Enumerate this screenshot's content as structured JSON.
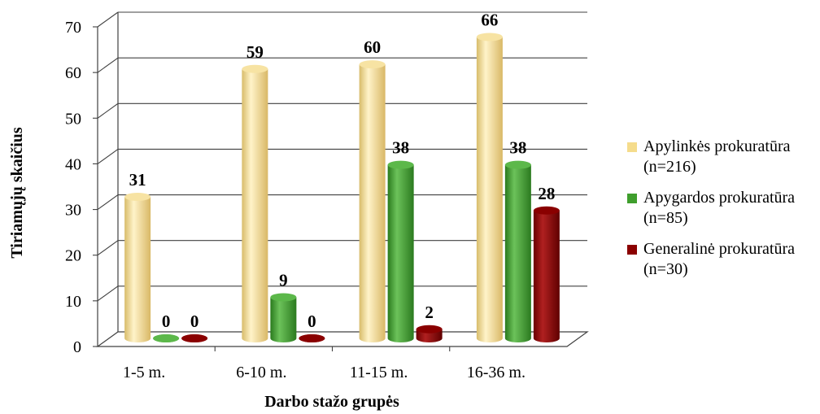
{
  "chart_data": {
    "type": "bar",
    "title": "",
    "xlabel": "Darbo stažo grupės",
    "ylabel": "Tiriamųjų skaičius",
    "ylim": [
      0,
      70
    ],
    "yticks": [
      0,
      10,
      20,
      30,
      40,
      50,
      60,
      70
    ],
    "grid": true,
    "legend_position": "right",
    "categories": [
      "1-5 m.",
      "6-10 m.",
      "11-15 m.",
      "16-36 m."
    ],
    "series": [
      {
        "name": "Apylinkės prokuratūra (n=216)",
        "color": "#f5dc8c",
        "values": [
          31,
          59,
          60,
          66
        ]
      },
      {
        "name": "Apygardos prokuratūra (n=85)",
        "color": "#3f9e2d",
        "values": [
          0,
          9,
          38,
          38
        ]
      },
      {
        "name": "Generalinė prokuratūra (n=30)",
        "color": "#8b0000",
        "values": [
          0,
          0,
          2,
          28
        ]
      }
    ]
  }
}
